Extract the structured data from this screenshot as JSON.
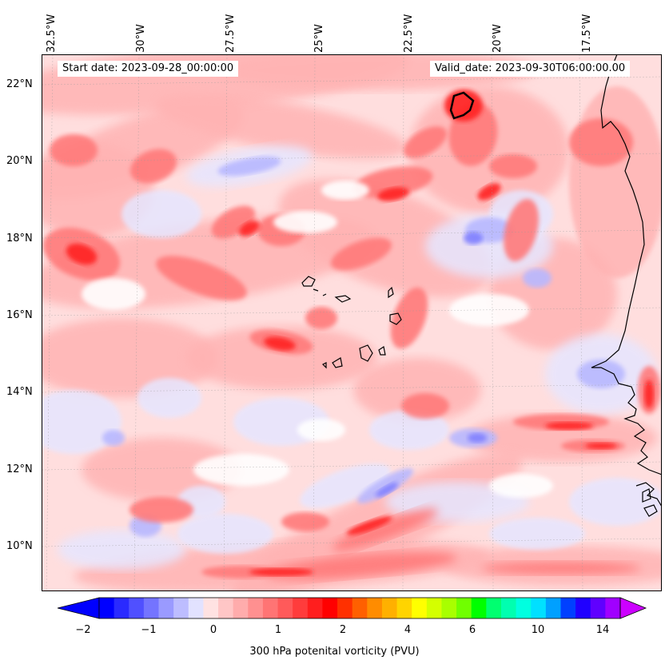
{
  "map": {
    "start_label": "Start date: 2023-09-28_00:00:00",
    "valid_label": "Valid_date: 2023-09-30T06:00:00.00",
    "lon_ticks": [
      "32.5°W",
      "30°W",
      "27.5°W",
      "25°W",
      "22.5°W",
      "20°W",
      "17.5°W"
    ],
    "lat_ticks": [
      "22°N",
      "20°N",
      "18°N",
      "16°N",
      "14°N",
      "12°N",
      "10°N"
    ],
    "field": "300 hPa potential vorticity"
  },
  "colorbar": {
    "title": "300 hPa potenital vorticity (PVU)",
    "tick_labels": [
      "−2",
      "−1",
      "0",
      "1",
      "2",
      "4",
      "6",
      "10",
      "14"
    ],
    "colors": [
      "#0000ff",
      "#2a2aff",
      "#5050ff",
      "#7474ff",
      "#9a9aff",
      "#bdbdff",
      "#e2e2ff",
      "#ffe2e2",
      "#ffc6c6",
      "#ffacac",
      "#ff9090",
      "#ff7474",
      "#ff5a5a",
      "#ff3c3c",
      "#ff1e1e",
      "#ff0000",
      "#ff3000",
      "#ff6000",
      "#ff8c00",
      "#ffb000",
      "#ffd400",
      "#ffff00",
      "#d4ff00",
      "#a8ff00",
      "#70ff00",
      "#00ff00",
      "#00ff70",
      "#00ffb0",
      "#00ffe0",
      "#00e0ff",
      "#00a0ff",
      "#0040ff",
      "#2000ff",
      "#6000ff",
      "#a000ff"
    ],
    "under_color": "#0000ff",
    "over_color": "#cc00ff"
  },
  "palette": {
    "strong_red": "#ff2020",
    "mid_red": "#ff7a7a",
    "light_red": "#ffb3b3",
    "pale_red": "#ffdede",
    "pale_blue": "#e6e6ff",
    "light_blue": "#b8b8ff",
    "mid_blue": "#8080ff",
    "coast": "#000000"
  }
}
